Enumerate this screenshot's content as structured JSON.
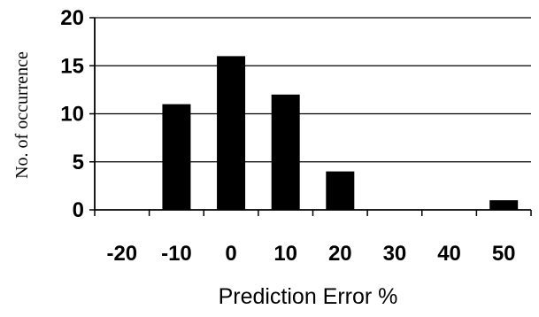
{
  "chart_data": {
    "type": "bar",
    "title": "",
    "xlabel": "Prediction Error %",
    "ylabel": "No. of occurrence",
    "categories": [
      "-20",
      "-10",
      "0",
      "10",
      "20",
      "30",
      "40",
      "50"
    ],
    "values": [
      0,
      11,
      16,
      12,
      4,
      0,
      0,
      1
    ],
    "ylim": [
      0,
      20
    ],
    "yticks": [
      "0",
      "5",
      "10",
      "15",
      "20"
    ],
    "grid": true,
    "bar_color": "#000000"
  }
}
